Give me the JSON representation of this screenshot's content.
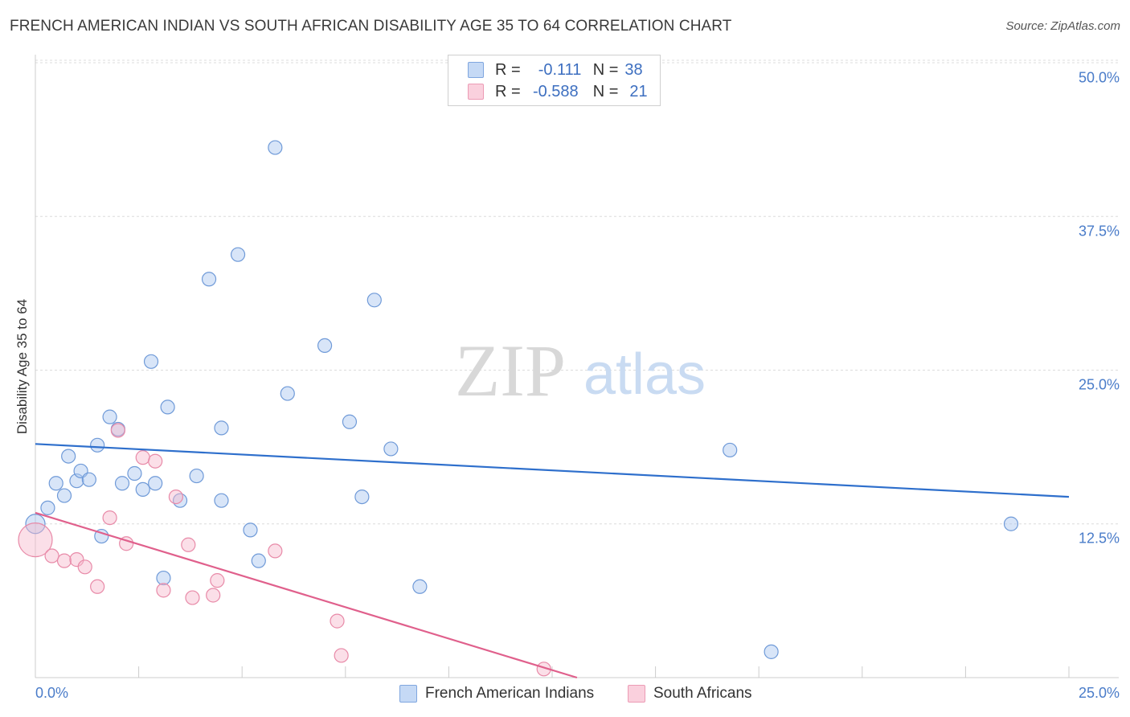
{
  "title": "FRENCH AMERICAN INDIAN VS SOUTH AFRICAN DISABILITY AGE 35 TO 64 CORRELATION CHART",
  "source": "Source: ZipAtlas.com",
  "watermark": {
    "zip": "ZIP",
    "atlas": "atlas"
  },
  "legend": {
    "r_label": "R =",
    "n_label": "N =",
    "rows": [
      {
        "r": "-0.111",
        "n": "38",
        "color": "#a8c6f0"
      },
      {
        "r": "-0.588",
        "n": "21",
        "color": "#f6b8cb"
      }
    ]
  },
  "chart_data": {
    "type": "scatter",
    "title": "FRENCH AMERICAN INDIAN VS SOUTH AFRICAN DISABILITY AGE 35 TO 64 CORRELATION CHART",
    "xlabel": "",
    "ylabel": "Disability Age 35 to 64",
    "xlim": [
      0,
      25
    ],
    "ylim": [
      0,
      50
    ],
    "x_tick_labels": [
      "0.0%",
      "25.0%"
    ],
    "y_ticks": [
      12.5,
      25.0,
      37.5,
      50.0
    ],
    "y_tick_labels": [
      "12.5%",
      "25.0%",
      "37.5%",
      "50.0%"
    ],
    "grid": true,
    "legend_position": "top-center",
    "series": [
      {
        "name": "French American Indians",
        "color": "#a8c6f0",
        "stroke": "#6f9ad8",
        "line_color": "#2e6fcc",
        "r": -0.111,
        "n": 38,
        "trend": {
          "x": [
            0,
            25
          ],
          "y": [
            19.0,
            14.7
          ]
        },
        "points": [
          [
            0.0,
            12.5
          ],
          [
            0.3,
            13.8
          ],
          [
            0.5,
            15.8
          ],
          [
            0.7,
            14.8
          ],
          [
            0.8,
            18.0
          ],
          [
            1.0,
            16.0
          ],
          [
            1.1,
            16.8
          ],
          [
            1.3,
            16.1
          ],
          [
            1.5,
            18.9
          ],
          [
            1.6,
            11.5
          ],
          [
            1.8,
            21.2
          ],
          [
            2.0,
            20.2
          ],
          [
            2.1,
            15.8
          ],
          [
            2.4,
            16.6
          ],
          [
            2.6,
            15.3
          ],
          [
            2.8,
            25.7
          ],
          [
            2.9,
            15.8
          ],
          [
            3.1,
            8.1
          ],
          [
            3.2,
            22.0
          ],
          [
            3.5,
            14.4
          ],
          [
            3.9,
            16.4
          ],
          [
            4.2,
            32.4
          ],
          [
            4.5,
            20.3
          ],
          [
            4.5,
            14.4
          ],
          [
            4.9,
            34.4
          ],
          [
            5.2,
            12.0
          ],
          [
            5.4,
            9.5
          ],
          [
            5.8,
            43.1
          ],
          [
            6.1,
            23.1
          ],
          [
            7.0,
            27.0
          ],
          [
            7.6,
            20.8
          ],
          [
            7.9,
            14.7
          ],
          [
            8.2,
            30.7
          ],
          [
            8.6,
            18.6
          ],
          [
            9.3,
            7.4
          ],
          [
            16.8,
            18.5
          ],
          [
            17.8,
            2.1
          ],
          [
            23.6,
            12.5
          ]
        ]
      },
      {
        "name": "South Africans",
        "color": "#f6b8cb",
        "stroke": "#e88aa8",
        "line_color": "#e0608c",
        "r": -0.588,
        "n": 21,
        "trend": {
          "x": [
            0,
            13.1
          ],
          "y": [
            13.4,
            0.0
          ]
        },
        "points": [
          [
            0.0,
            11.2
          ],
          [
            0.4,
            9.9
          ],
          [
            0.7,
            9.5
          ],
          [
            1.0,
            9.6
          ],
          [
            1.2,
            9.0
          ],
          [
            1.5,
            7.4
          ],
          [
            1.8,
            13.0
          ],
          [
            2.0,
            20.1
          ],
          [
            2.2,
            10.9
          ],
          [
            2.6,
            17.9
          ],
          [
            2.9,
            17.6
          ],
          [
            3.1,
            7.1
          ],
          [
            3.4,
            14.7
          ],
          [
            3.7,
            10.8
          ],
          [
            3.8,
            6.5
          ],
          [
            4.3,
            6.7
          ],
          [
            4.4,
            7.9
          ],
          [
            5.8,
            10.3
          ],
          [
            7.3,
            4.6
          ],
          [
            7.4,
            1.8
          ],
          [
            12.3,
            0.7
          ]
        ]
      }
    ]
  }
}
